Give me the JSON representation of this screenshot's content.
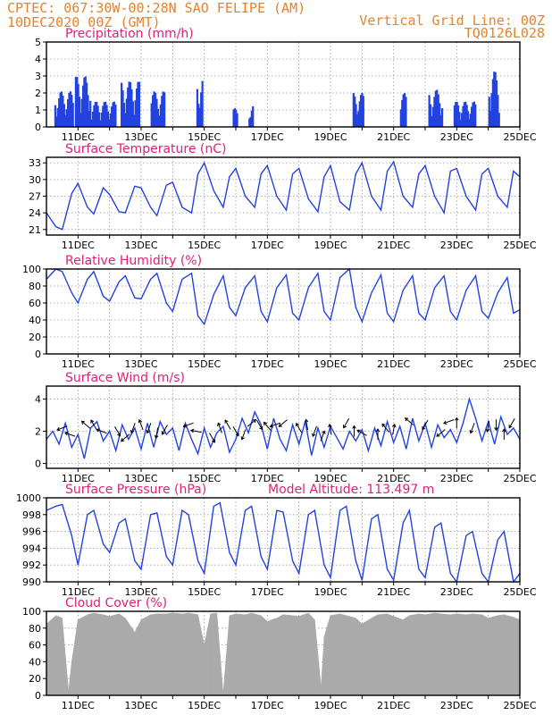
{
  "header": {
    "left_line1": "CPTEC:   067:30W-00:28N  SAO FELIPE (AM)",
    "left_line2": "10DEC2020 00Z (GMT)",
    "right_line1": "Vertical Grid Line: 00Z",
    "right_line2": "TQ0126L028"
  },
  "colors": {
    "series": "#2243e0",
    "cloud": "#aaaaaa",
    "title": "#e0207a",
    "header": "#e8822a",
    "arrow": "#000000"
  },
  "chart_data": [
    {
      "type": "bar",
      "title": "Precipitation (mm/h)",
      "ylim": [
        0,
        5
      ],
      "yticks": [
        "0",
        "1",
        "2",
        "3",
        "4",
        "5"
      ],
      "xticks": [
        "11DEC",
        "13DEC",
        "15DEC",
        "17DEC",
        "19DEC",
        "21DEC",
        "23DEC",
        "25DEC"
      ],
      "grid": true,
      "x_start": "10DEC2020 00Z",
      "x_end": "25DEC2020 00Z",
      "bursts": [
        {
          "start": 10.25,
          "end": 10.85,
          "peak": 2.1
        },
        {
          "start": 10.9,
          "end": 11.4,
          "peak": 3.0
        },
        {
          "start": 11.4,
          "end": 12.2,
          "peak": 1.5
        },
        {
          "start": 12.35,
          "end": 12.95,
          "peak": 2.7
        },
        {
          "start": 13.3,
          "end": 13.75,
          "peak": 2.1
        },
        {
          "start": 14.75,
          "end": 14.95,
          "peak": 3.0
        },
        {
          "start": 15.9,
          "end": 16.05,
          "peak": 1.1
        },
        {
          "start": 16.4,
          "end": 16.55,
          "peak": 1.3
        },
        {
          "start": 19.7,
          "end": 20.05,
          "peak": 2.0
        },
        {
          "start": 21.2,
          "end": 21.4,
          "peak": 2.0
        },
        {
          "start": 22.1,
          "end": 22.55,
          "peak": 2.2
        },
        {
          "start": 22.9,
          "end": 23.6,
          "peak": 1.5
        },
        {
          "start": 24.0,
          "end": 24.35,
          "peak": 3.3
        }
      ]
    },
    {
      "type": "line",
      "title": "Surface Temperature (nC)",
      "ylim": [
        20,
        34
      ],
      "yticks": [
        "21",
        "24",
        "27",
        "30",
        "33"
      ],
      "xticks": [
        "11DEC",
        "13DEC",
        "15DEC",
        "17DEC",
        "19DEC",
        "21DEC",
        "23DEC",
        "25DEC"
      ],
      "grid": true,
      "x": [
        10.0,
        10.3,
        10.5,
        10.8,
        11.0,
        11.3,
        11.5,
        11.8,
        12.0,
        12.3,
        12.5,
        12.8,
        13.0,
        13.3,
        13.5,
        13.8,
        14.0,
        14.3,
        14.6,
        14.8,
        15.0,
        15.3,
        15.6,
        15.8,
        16.0,
        16.3,
        16.6,
        16.8,
        17.0,
        17.3,
        17.6,
        17.8,
        18.0,
        18.3,
        18.6,
        18.8,
        19.0,
        19.3,
        19.6,
        19.8,
        20.0,
        20.3,
        20.6,
        20.8,
        21.0,
        21.3,
        21.6,
        21.8,
        22.0,
        22.3,
        22.6,
        22.8,
        23.0,
        23.3,
        23.6,
        23.8,
        24.0,
        24.3,
        24.6,
        24.8,
        25.0
      ],
      "y": [
        24.0,
        21.5,
        21.0,
        27.5,
        29.3,
        25.0,
        23.8,
        28.5,
        27.3,
        24.2,
        24.0,
        28.8,
        28.5,
        25.0,
        23.5,
        29.0,
        29.5,
        25.0,
        24.0,
        31.0,
        33.0,
        28.0,
        25.0,
        30.5,
        32.0,
        27.0,
        25.0,
        31.0,
        32.5,
        27.0,
        24.5,
        31.0,
        32.0,
        26.5,
        24.2,
        30.5,
        32.5,
        26.0,
        24.5,
        31.0,
        33.0,
        27.0,
        24.5,
        31.5,
        33.2,
        27.0,
        25.0,
        31.0,
        32.5,
        27.0,
        24.0,
        31.5,
        32.0,
        27.0,
        24.5,
        31.0,
        32.0,
        27.0,
        25.0,
        31.5,
        30.5
      ]
    },
    {
      "type": "line",
      "title": "Relative Humidity (%)",
      "ylim": [
        0,
        100
      ],
      "yticks": [
        "0",
        "20",
        "40",
        "60",
        "80",
        "100"
      ],
      "xticks": [
        "11DEC",
        "13DEC",
        "15DEC",
        "17DEC",
        "19DEC",
        "21DEC",
        "23DEC",
        "25DEC"
      ],
      "grid": true,
      "x": [
        10.0,
        10.3,
        10.5,
        10.8,
        11.0,
        11.3,
        11.5,
        11.8,
        12.0,
        12.3,
        12.5,
        12.8,
        13.0,
        13.3,
        13.5,
        13.8,
        14.0,
        14.3,
        14.6,
        14.8,
        15.0,
        15.3,
        15.6,
        15.8,
        16.0,
        16.3,
        16.6,
        16.8,
        17.0,
        17.3,
        17.6,
        17.8,
        18.0,
        18.3,
        18.6,
        18.8,
        19.0,
        19.3,
        19.6,
        19.8,
        20.0,
        20.3,
        20.6,
        20.8,
        21.0,
        21.3,
        21.6,
        21.8,
        22.0,
        22.3,
        22.6,
        22.8,
        23.0,
        23.3,
        23.6,
        23.8,
        24.0,
        24.3,
        24.6,
        24.8,
        25.0
      ],
      "y": [
        88,
        100,
        97,
        72,
        60,
        88,
        97,
        68,
        62,
        85,
        92,
        66,
        65,
        88,
        95,
        60,
        50,
        88,
        95,
        45,
        35,
        70,
        92,
        55,
        45,
        78,
        92,
        50,
        38,
        78,
        93,
        48,
        40,
        78,
        95,
        50,
        40,
        90,
        100,
        55,
        38,
        72,
        93,
        48,
        38,
        75,
        92,
        48,
        40,
        78,
        92,
        50,
        40,
        75,
        92,
        50,
        42,
        72,
        90,
        48,
        52
      ]
    },
    {
      "type": "line",
      "title": "Surface Wind (m/s)",
      "ylim": [
        -0.3,
        4.8
      ],
      "yticks": [
        "0",
        "2",
        "4"
      ],
      "xticks": [
        "11DEC",
        "13DEC",
        "15DEC",
        "17DEC",
        "19DEC",
        "21DEC",
        "23DEC",
        "25DEC"
      ],
      "grid": true,
      "x": [
        10.0,
        10.2,
        10.4,
        10.6,
        10.8,
        11.0,
        11.2,
        11.4,
        11.6,
        11.8,
        12.0,
        12.2,
        12.4,
        12.6,
        12.8,
        13.0,
        13.2,
        13.4,
        13.6,
        13.8,
        14.0,
        14.2,
        14.4,
        14.6,
        14.8,
        15.0,
        15.2,
        15.4,
        15.6,
        15.8,
        16.0,
        16.2,
        16.4,
        16.6,
        16.8,
        17.0,
        17.2,
        17.4,
        17.6,
        17.8,
        18.0,
        18.2,
        18.4,
        18.6,
        18.8,
        19.0,
        19.2,
        19.4,
        19.6,
        19.8,
        20.0,
        20.2,
        20.4,
        20.6,
        20.8,
        21.0,
        21.2,
        21.4,
        21.6,
        21.8,
        22.0,
        22.2,
        22.4,
        22.6,
        22.8,
        23.0,
        23.2,
        23.4,
        23.6,
        23.8,
        24.0,
        24.2,
        24.4,
        24.6,
        24.8,
        25.0
      ],
      "y": [
        1.5,
        2.0,
        1.2,
        2.5,
        1.0,
        1.8,
        0.3,
        2.2,
        2.6,
        1.4,
        2.0,
        0.8,
        2.4,
        1.5,
        2.2,
        0.9,
        2.5,
        1.0,
        2.6,
        1.8,
        2.2,
        0.8,
        2.5,
        1.5,
        0.6,
        2.2,
        1.0,
        1.9,
        2.3,
        0.7,
        1.5,
        2.8,
        1.9,
        3.2,
        2.4,
        0.9,
        2.8,
        1.5,
        0.8,
        2.4,
        1.2,
        2.6,
        0.5,
        2.2,
        1.0,
        2.3,
        1.6,
        0.9,
        2.0,
        1.4,
        2.1,
        0.8,
        2.2,
        1.1,
        2.6,
        1.3,
        2.3,
        0.9,
        2.8,
        1.4,
        2.5,
        1.0,
        2.4,
        1.6,
        2.1,
        1.3,
        2.5,
        4.0,
        2.8,
        1.4,
        2.6,
        1.2,
        2.9,
        1.8,
        2.2,
        1.5
      ]
    },
    {
      "type": "line",
      "title": "Surface Pressure (hPa)",
      "annotation": "Model Altitude: 113.497 m",
      "ylim": [
        990,
        1000
      ],
      "yticks": [
        "990",
        "992",
        "994",
        "996",
        "998",
        "1000"
      ],
      "xticks": [
        "11DEC",
        "13DEC",
        "15DEC",
        "17DEC",
        "19DEC",
        "21DEC",
        "23DEC",
        "25DEC"
      ],
      "grid": true,
      "x": [
        10.0,
        10.3,
        10.5,
        10.8,
        11.0,
        11.3,
        11.5,
        11.8,
        12.0,
        12.3,
        12.5,
        12.8,
        13.0,
        13.3,
        13.5,
        13.8,
        14.0,
        14.3,
        14.5,
        14.8,
        15.0,
        15.3,
        15.5,
        15.8,
        16.0,
        16.3,
        16.5,
        16.8,
        17.0,
        17.3,
        17.5,
        17.8,
        18.0,
        18.3,
        18.5,
        18.8,
        19.0,
        19.3,
        19.5,
        19.8,
        20.0,
        20.3,
        20.5,
        20.8,
        21.0,
        21.3,
        21.5,
        21.8,
        22.0,
        22.3,
        22.5,
        22.8,
        23.0,
        23.3,
        23.5,
        23.8,
        24.0,
        24.3,
        24.5,
        24.8,
        25.0
      ],
      "y": [
        998.5,
        999.0,
        999.2,
        995.5,
        992.0,
        998.0,
        998.5,
        994.5,
        993.5,
        997.0,
        997.5,
        992.5,
        991.5,
        998.0,
        998.2,
        993.0,
        992.0,
        998.5,
        998.0,
        992.5,
        991.0,
        999.0,
        999.4,
        993.5,
        992.0,
        998.5,
        999.0,
        993.0,
        991.5,
        998.5,
        998.3,
        992.5,
        991.0,
        998.0,
        998.5,
        992.0,
        990.5,
        998.5,
        999.0,
        992.5,
        990.2,
        997.5,
        998.0,
        991.5,
        990.2,
        997.0,
        998.5,
        991.5,
        990.5,
        996.5,
        997.0,
        991.0,
        990.0,
        995.5,
        996.0,
        991.0,
        990.0,
        995.0,
        996.0,
        990.0,
        991.0
      ]
    },
    {
      "type": "area",
      "title": "Cloud Cover (%)",
      "ylim": [
        0,
        100
      ],
      "yticks": [
        "0",
        "20",
        "40",
        "60",
        "80",
        "100"
      ],
      "xticks": [
        "11DEC",
        "13DEC",
        "15DEC",
        "17DEC",
        "19DEC",
        "21DEC",
        "23DEC",
        "25DEC"
      ],
      "grid": true,
      "x": [
        10.0,
        10.3,
        10.5,
        10.7,
        10.8,
        11.0,
        11.3,
        11.5,
        11.8,
        12.0,
        12.3,
        12.5,
        12.8,
        13.0,
        13.3,
        13.5,
        13.8,
        14.0,
        14.3,
        14.5,
        14.8,
        15.0,
        15.2,
        15.4,
        15.6,
        15.8,
        16.0,
        16.3,
        16.5,
        16.8,
        17.0,
        17.3,
        17.5,
        17.8,
        18.0,
        18.3,
        18.5,
        18.7,
        18.8,
        19.0,
        19.3,
        19.5,
        19.8,
        20.0,
        20.3,
        20.5,
        20.8,
        21.0,
        21.3,
        21.5,
        21.8,
        22.0,
        22.3,
        22.5,
        22.8,
        23.0,
        23.3,
        23.5,
        23.8,
        24.0,
        24.3,
        24.5,
        24.8,
        25.0
      ],
      "y": [
        85,
        95,
        92,
        5,
        40,
        90,
        96,
        98,
        96,
        94,
        97,
        92,
        75,
        90,
        96,
        97,
        97,
        98,
        97,
        98,
        96,
        60,
        97,
        98,
        2,
        95,
        97,
        96,
        98,
        95,
        88,
        92,
        96,
        95,
        94,
        98,
        90,
        10,
        70,
        95,
        97,
        95,
        92,
        85,
        92,
        96,
        97,
        94,
        90,
        95,
        97,
        96,
        98,
        97,
        96,
        97,
        96,
        97,
        96,
        92,
        95,
        96,
        93,
        90
      ]
    }
  ],
  "wind_arrows": {
    "x": [
      10.5,
      10.75,
      11.25,
      11.5,
      11.75,
      12.25,
      12.5,
      12.75,
      13.0,
      13.25,
      13.5,
      13.75,
      14.5,
      14.75,
      15.25,
      15.5,
      15.75,
      16.0,
      16.25,
      16.5,
      16.75,
      17.0,
      17.25,
      17.5,
      18.0,
      18.25,
      18.5,
      18.75,
      19.0,
      19.5,
      19.75,
      20.0,
      20.5,
      20.75,
      21.0,
      21.5,
      22.0,
      22.5,
      22.75,
      23.0,
      23.5,
      24.0,
      24.25,
      24.5,
      24.75
    ],
    "y": [
      2.2,
      1.8,
      2.4,
      2.4,
      2.0,
      2.0,
      1.6,
      2.2,
      2.4,
      2.2,
      1.9,
      2.1,
      2.4,
      2.0,
      1.6,
      2.2,
      2.4,
      2.0,
      1.8,
      2.5,
      2.4,
      2.3,
      2.4,
      2.5,
      2.2,
      2.4,
      2.0,
      1.7,
      2.1,
      2.5,
      2.0,
      1.9,
      1.8,
      2.2,
      2.1,
      2.6,
      2.4,
      1.9,
      2.6,
      2.5,
      2.2,
      2.3,
      2.4,
      1.8,
      2.5
    ],
    "dir_deg": [
      200,
      160,
      140,
      120,
      160,
      300,
      220,
      250,
      110,
      250,
      260,
      240,
      200,
      170,
      300,
      110,
      120,
      300,
      250,
      40,
      300,
      130,
      200,
      220,
      120,
      100,
      250,
      70,
      100,
      240,
      90,
      150,
      90,
      130,
      80,
      140,
      240,
      220,
      200,
      90,
      250,
      260,
      270,
      90,
      240
    ]
  }
}
